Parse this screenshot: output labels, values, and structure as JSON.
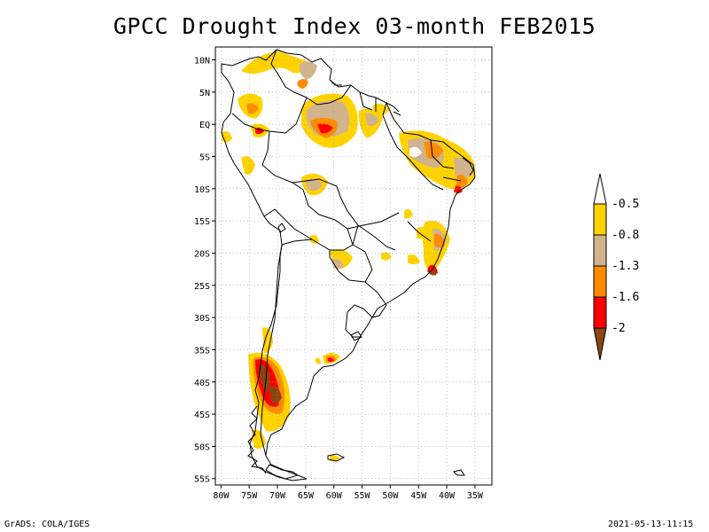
{
  "title": "GPCC Drought Index 03-month FEB2015",
  "footer": {
    "left": "GrADS: COLA/IGES",
    "right": "2021-05-13-11:15"
  },
  "axes": {
    "lat_ticks": [
      "10N",
      "5N",
      "EQ",
      "5S",
      "10S",
      "15S",
      "20S",
      "25S",
      "30S",
      "35S",
      "40S",
      "45S",
      "50S",
      "55S"
    ],
    "lat_values": [
      10,
      5,
      0,
      -5,
      -10,
      -15,
      -20,
      -25,
      -30,
      -35,
      -40,
      -45,
      -50,
      -55
    ],
    "lon_ticks": [
      "80W",
      "75W",
      "70W",
      "65W",
      "60W",
      "55W",
      "50W",
      "45W",
      "40W",
      "35W"
    ],
    "lon_values": [
      -80,
      -75,
      -70,
      -65,
      -60,
      -55,
      -50,
      -45,
      -40,
      -35
    ],
    "lat_range": [
      -56,
      12
    ],
    "lon_range": [
      -81,
      -32
    ]
  },
  "legend": {
    "labels": [
      "-0.5",
      "-0.8",
      "-1.3",
      "-1.6",
      "-2"
    ],
    "colors": [
      "#ffffff",
      "#ffd700",
      "#d2b48c",
      "#ff8c00",
      "#ff0000",
      "#8b4513"
    ]
  },
  "colors": {
    "yellow": "#ffd200",
    "tan": "#d2b48c",
    "orange": "#ff8c00",
    "red": "#ff0000",
    "brown": "#8b4513"
  }
}
